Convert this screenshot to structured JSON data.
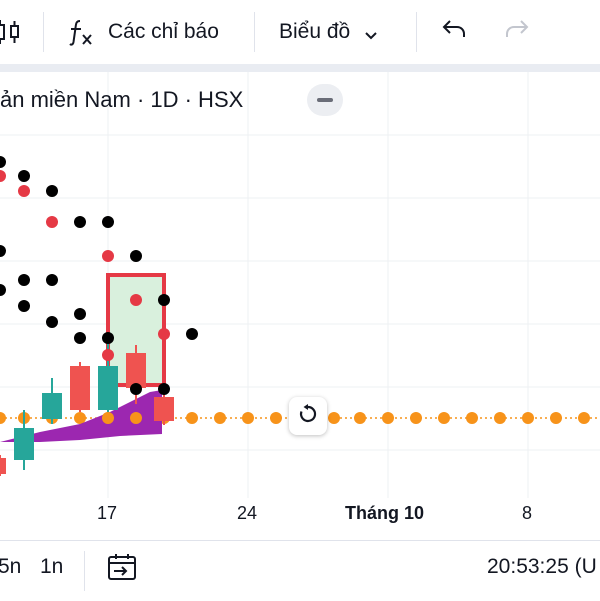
{
  "toolbar": {
    "indicators_label": "Các chỉ báo",
    "chart_type_label": "Biểu đồ"
  },
  "legend": {
    "title": "ản miền Nam · 1D · HSX"
  },
  "xaxis": {
    "labels": [
      "17",
      "24",
      "Tháng 10",
      "8"
    ]
  },
  "bottom": {
    "range_5m": "5n",
    "range_1m": "1n",
    "time": "20:53:25 (U"
  },
  "colors": {
    "up": "#26a69a",
    "down": "#ef5350",
    "dots": "#000000",
    "baseline": "#f7931a",
    "cloud": "#9c27b0"
  }
}
